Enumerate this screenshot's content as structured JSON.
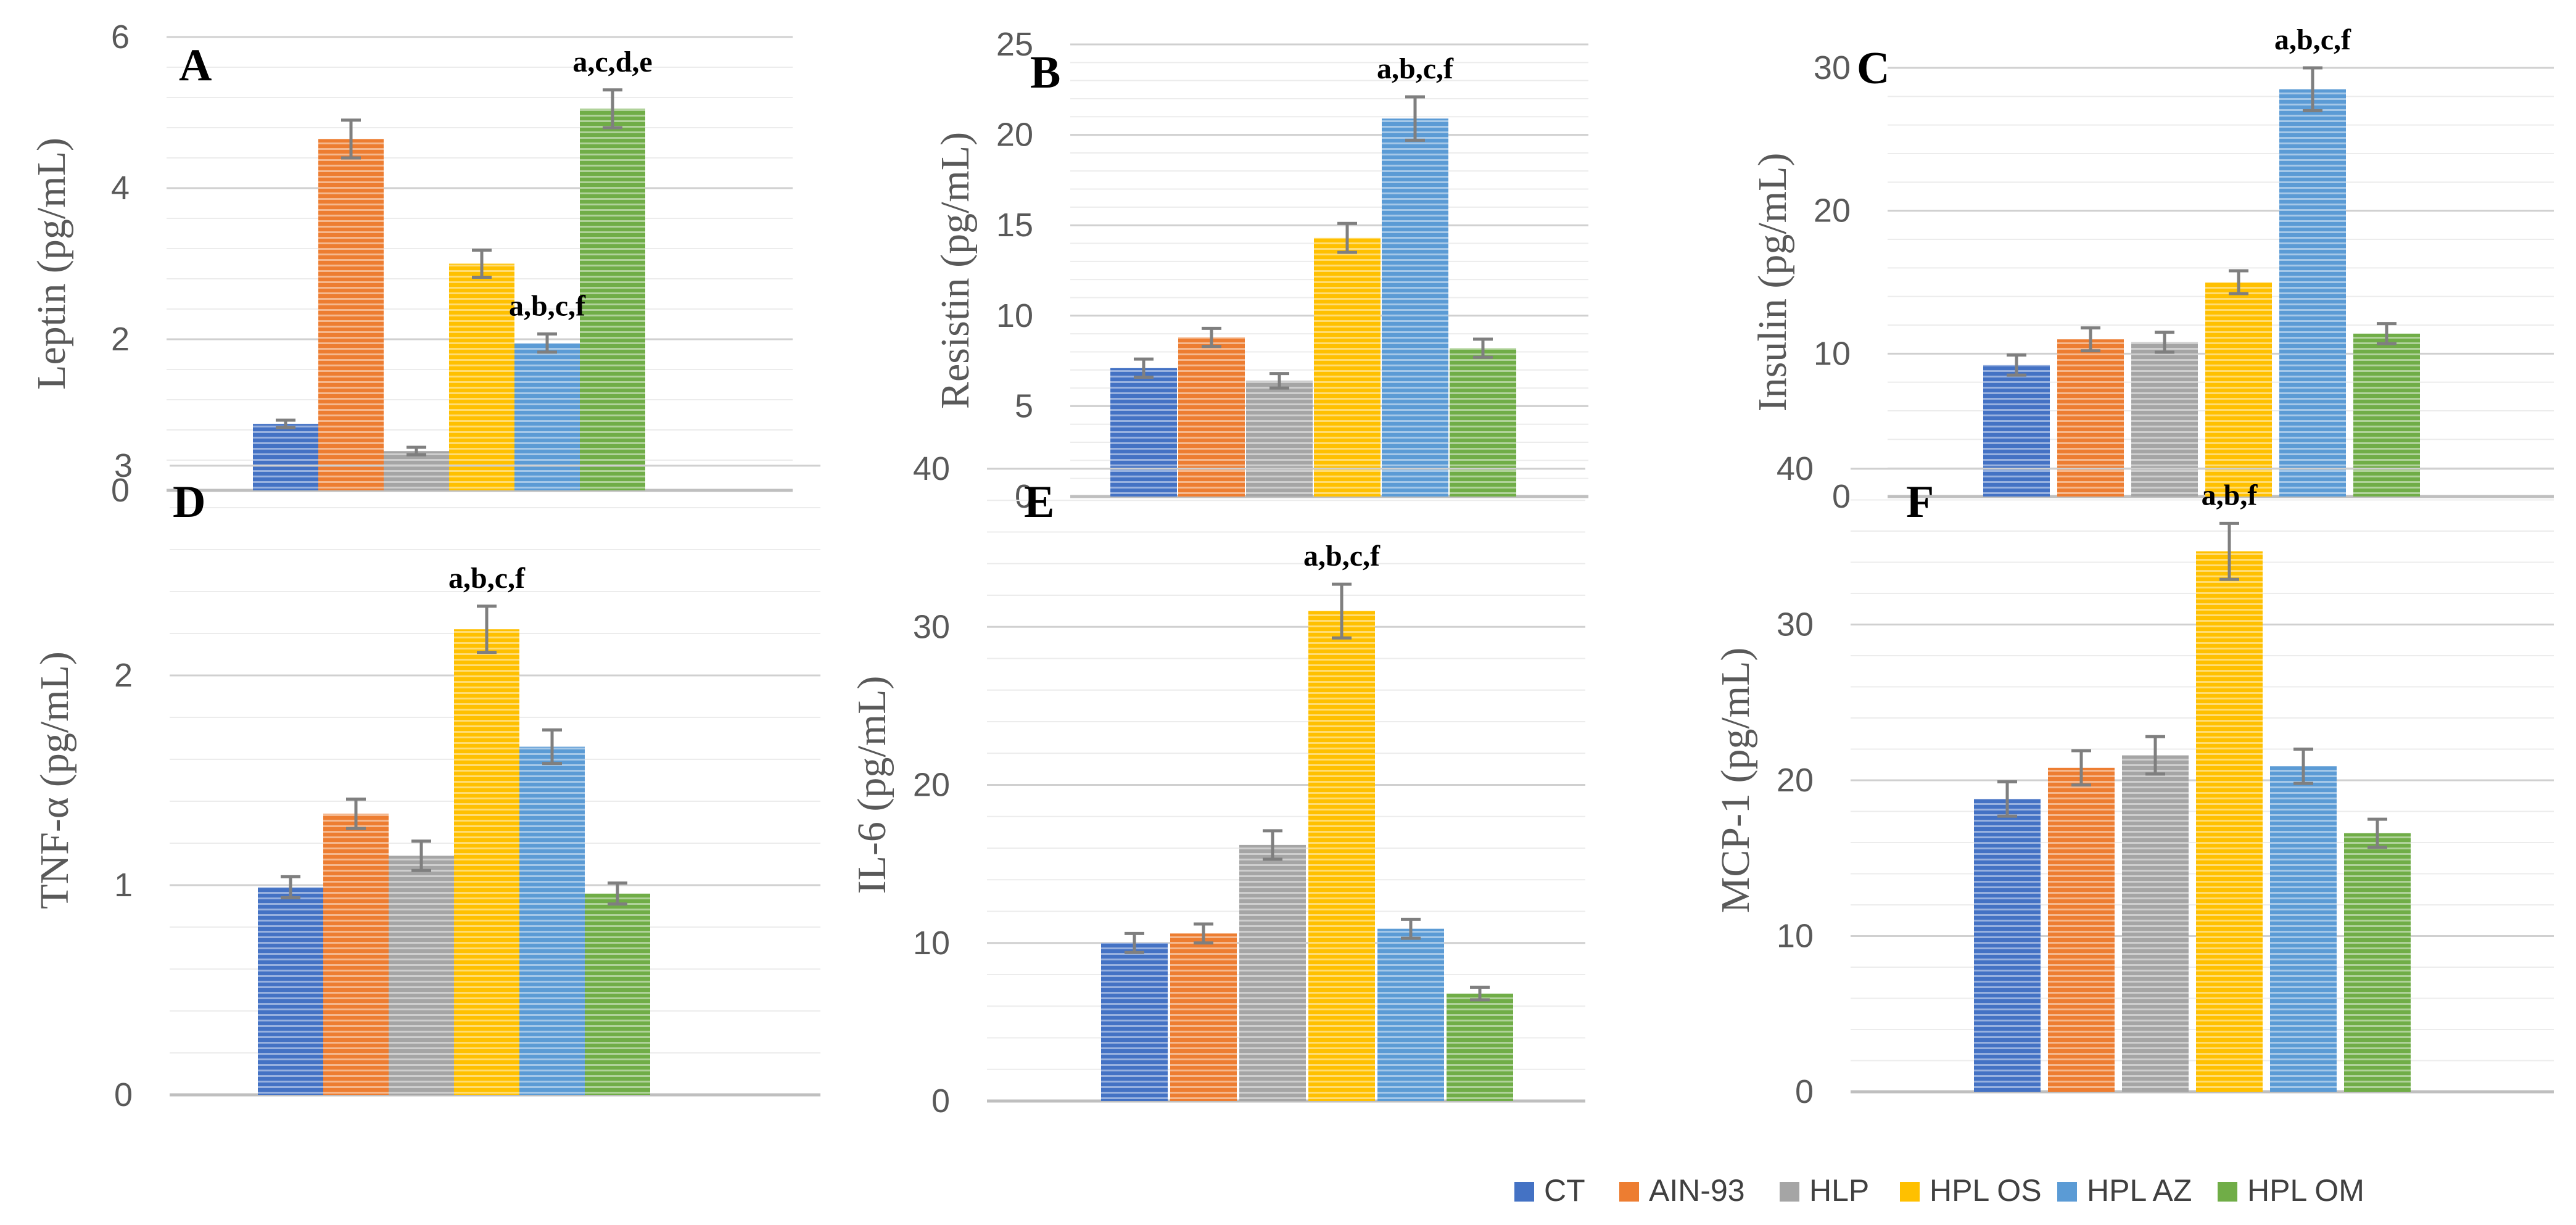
{
  "legend": [
    {
      "label": "CT",
      "color": "#4472C4"
    },
    {
      "label": "AIN-93",
      "color": "#ED7D31"
    },
    {
      "label": "HLP",
      "color": "#A5A5A5"
    },
    {
      "label": "HPL OS",
      "color": "#FFC000"
    },
    {
      "label": "HPL AZ",
      "color": "#5B9BD5"
    },
    {
      "label": "HPL OM",
      "color": "#70AD47"
    }
  ],
  "chart_data": [
    {
      "type": "bar",
      "panel": "A",
      "ylabel": "Leptin (pg/mL)",
      "ylim": [
        0,
        6
      ],
      "yticks": [
        0,
        2,
        4,
        6
      ],
      "categories": [
        "CT",
        "AIN-93",
        "HLP",
        "HPL OS",
        "HPL AZ",
        "HPL OM"
      ],
      "values": [
        0.88,
        4.65,
        0.52,
        3.0,
        1.95,
        5.05
      ],
      "errors": [
        0.05,
        0.25,
        0.05,
        0.18,
        0.12,
        0.25
      ],
      "annotations": [
        {
          "bar": 4,
          "text": "a,b,c,f"
        },
        {
          "bar": 5,
          "text": "a,c,d,e"
        }
      ]
    },
    {
      "type": "bar",
      "panel": "B",
      "ylabel": "Resistin (pg/mL)",
      "ylim": [
        0,
        25
      ],
      "yticks": [
        0,
        5,
        10,
        15,
        20,
        25
      ],
      "categories": [
        "CT",
        "AIN-93",
        "HLP",
        "HPL OS",
        "HPL AZ",
        "HPL OM"
      ],
      "values": [
        7.1,
        8.8,
        6.4,
        14.3,
        20.9,
        8.2
      ],
      "errors": [
        0.5,
        0.5,
        0.4,
        0.8,
        1.2,
        0.5
      ],
      "annotations": [
        {
          "bar": 4,
          "text": "a,b,c,f"
        }
      ]
    },
    {
      "type": "bar",
      "panel": "C",
      "ylabel": "Insulin (pg/mL)",
      "ylim": [
        0,
        30
      ],
      "yticks": [
        0,
        10,
        20,
        30
      ],
      "categories": [
        "CT",
        "AIN-93",
        "HLP",
        "HPL OS",
        "HPL AZ",
        "HPL OM"
      ],
      "values": [
        9.2,
        11.0,
        10.8,
        15.0,
        28.5,
        11.4
      ],
      "errors": [
        0.7,
        0.8,
        0.7,
        0.8,
        1.5,
        0.7
      ],
      "annotations": [
        {
          "bar": 4,
          "text": "a,b,c,f"
        }
      ]
    },
    {
      "type": "bar",
      "panel": "D",
      "ylabel": "TNF-α (pg/mL)",
      "ylim": [
        0,
        3
      ],
      "yticks": [
        0,
        1,
        2,
        3
      ],
      "categories": [
        "CT",
        "AIN-93",
        "HLP",
        "HPL OS",
        "HPL AZ",
        "HPL OM"
      ],
      "values": [
        0.99,
        1.34,
        1.14,
        2.22,
        1.66,
        0.96
      ],
      "errors": [
        0.05,
        0.07,
        0.07,
        0.11,
        0.08,
        0.05
      ],
      "annotations": [
        {
          "bar": 3,
          "text": "a,b,c,f"
        }
      ]
    },
    {
      "type": "bar",
      "panel": "E",
      "ylabel": "IL-6 (pg/mL)",
      "ylim": [
        0,
        40
      ],
      "yticks": [
        0,
        10,
        20,
        30,
        40
      ],
      "categories": [
        "CT",
        "AIN-93",
        "HLP",
        "HPL OS",
        "HPL AZ",
        "HPL OM"
      ],
      "values": [
        10.0,
        10.6,
        16.2,
        31.0,
        10.9,
        6.8
      ],
      "errors": [
        0.6,
        0.6,
        0.9,
        1.7,
        0.6,
        0.4
      ],
      "annotations": [
        {
          "bar": 3,
          "text": "a,b,c,f"
        }
      ]
    },
    {
      "type": "bar",
      "panel": "F",
      "ylabel": "MCP-1 (pg/mL)",
      "ylim": [
        0,
        40
      ],
      "yticks": [
        0,
        10,
        20,
        30,
        40
      ],
      "categories": [
        "CT",
        "AIN-93",
        "HLP",
        "HPL OS",
        "HPL AZ",
        "HPL OM"
      ],
      "values": [
        18.8,
        20.8,
        21.6,
        34.7,
        20.9,
        16.6
      ],
      "errors": [
        1.1,
        1.1,
        1.2,
        1.8,
        1.1,
        0.9
      ],
      "annotations": [
        {
          "bar": 3,
          "text": "a,b,f"
        }
      ]
    }
  ]
}
